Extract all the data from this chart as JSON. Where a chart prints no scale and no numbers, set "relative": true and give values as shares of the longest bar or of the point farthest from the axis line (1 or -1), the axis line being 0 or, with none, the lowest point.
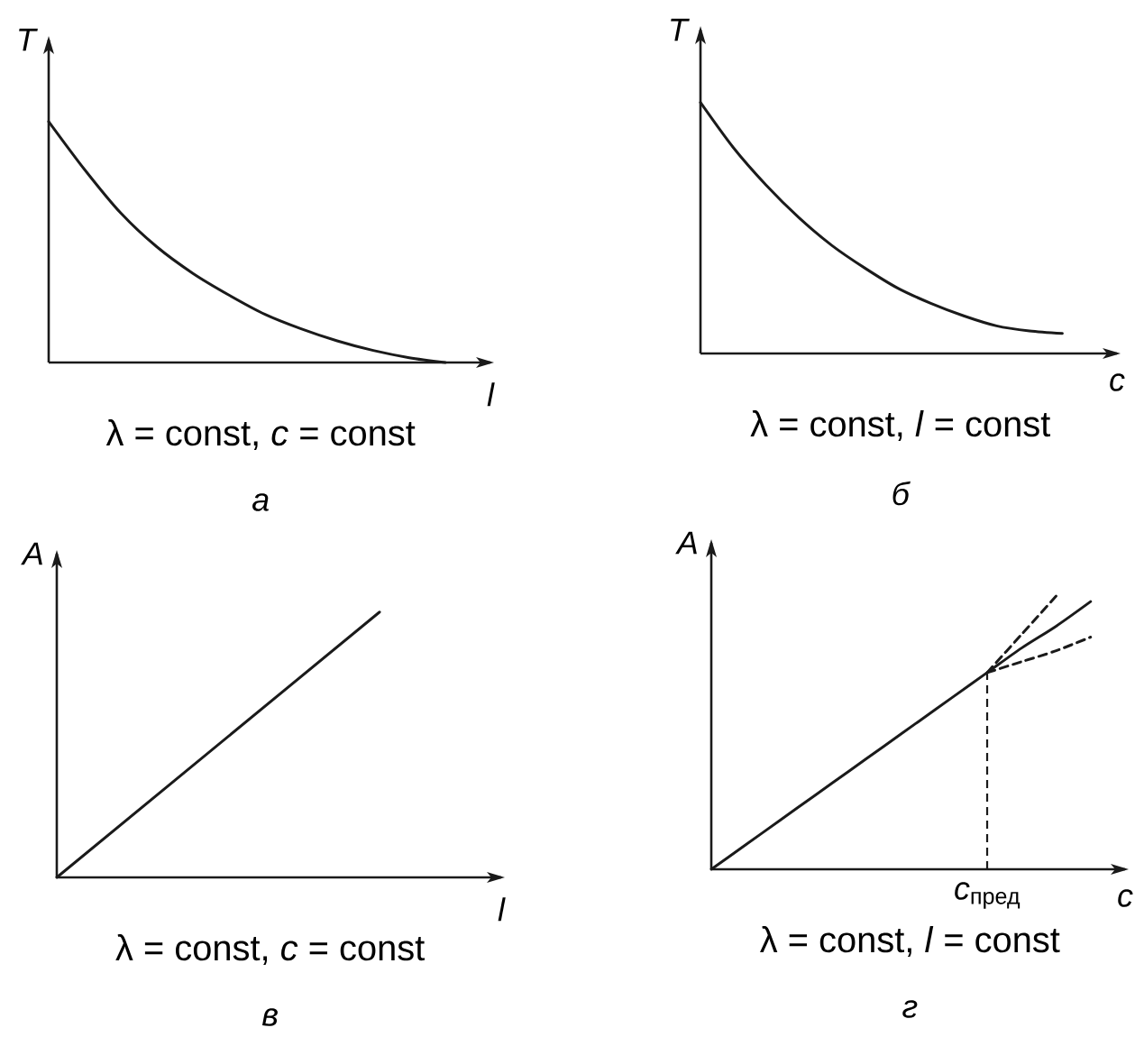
{
  "chart_data": [
    {
      "type": "line",
      "relative": true,
      "title": "а",
      "subtitle": "λ = const, *c* = const",
      "xlabel": "l",
      "ylabel": "T",
      "categories": [
        null,
        null,
        null,
        null,
        null,
        null,
        null,
        null,
        null,
        null,
        null,
        null
      ],
      "series": [
        {
          "color": "#1a1a1a",
          "values": [
            1,
            0.8,
            0.62,
            0.48,
            0.37,
            0.28,
            0.2,
            0.14,
            0.09,
            0.05,
            0.02,
            0
          ]
        }
      ]
    },
    {
      "type": "line",
      "relative": true,
      "title": "б",
      "subtitle": "λ = const, *l* = const",
      "xlabel": "c",
      "ylabel": "T",
      "categories": [
        null,
        null,
        null,
        null,
        null,
        null,
        null,
        null,
        null,
        null,
        null,
        null
      ],
      "series": [
        {
          "color": "#1a1a1a",
          "values": [
            1,
            0.82,
            0.67,
            0.54,
            0.43,
            0.34,
            0.26,
            0.2,
            0.15,
            0.11,
            0.09,
            0.08
          ]
        }
      ]
    },
    {
      "type": "line",
      "relative": true,
      "title": "в",
      "subtitle": "λ = const, *c* = const",
      "xlabel": "l",
      "ylabel": "A",
      "categories": [
        null,
        null
      ],
      "series": [
        {
          "color": "#1a1a1a",
          "values": [
            0,
            1
          ]
        }
      ]
    },
    {
      "type": "line",
      "relative": true,
      "title": "г",
      "subtitle": "λ = const, *l* = const",
      "xlabel": "c",
      "ylabel": "A",
      "categories": [
        null,
        null,
        null,
        null,
        null,
        null,
        null,
        null,
        null,
        null,
        null,
        null,
        null
      ],
      "series": [
        {
          "color": "#1a1a1a",
          "values": [
            0,
            0.09,
            0.18,
            0.27,
            0.36,
            0.45,
            0.54,
            0.63,
            0.72,
            0.81,
            0.89,
            0.98,
            null
          ]
        },
        {
          "color": "#1a1a1a",
          "line_style": "dashed",
          "values": [
            null,
            null,
            null,
            null,
            null,
            null,
            null,
            null,
            0.72,
            0.86,
            1,
            null,
            null
          ]
        },
        {
          "color": "#1a1a1a",
          "line_style": "dashed",
          "values": [
            null,
            null,
            null,
            null,
            null,
            null,
            null,
            null,
            0.72,
            0.76,
            0.8,
            0.85,
            null
          ]
        }
      ],
      "ref_lines": [
        {
          "axis": "x",
          "value": "*c*$_{пред}$",
          "color": "#1a1a1a",
          "line_style": "dashed"
        }
      ]
    }
  ]
}
